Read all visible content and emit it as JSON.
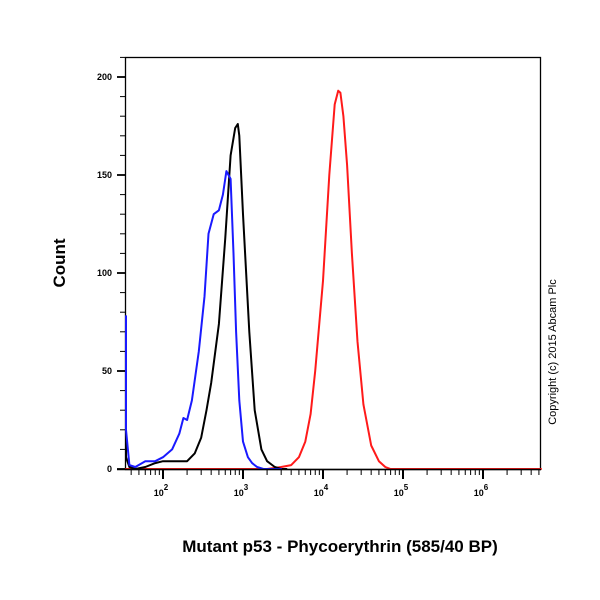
{
  "chart_data": {
    "type": "line",
    "title": "",
    "xlabel": "Mutant p53 - Phycoerythrin (585/40 BP)",
    "ylabel": "Count",
    "xscale": "log",
    "xlim": [
      30,
      6000000
    ],
    "ylim": [
      0,
      210
    ],
    "yticks": [
      0,
      50,
      100,
      150,
      200
    ],
    "xticks": [
      {
        "base": "10",
        "exp": "2",
        "value": 100
      },
      {
        "base": "10",
        "exp": "3",
        "value": 1000
      },
      {
        "base": "10",
        "exp": "4",
        "value": 10000
      },
      {
        "base": "10",
        "exp": "5",
        "value": 100000
      },
      {
        "base": "10",
        "exp": "6",
        "value": 1000000
      }
    ],
    "grid": false,
    "legend": null,
    "annotation": "Copyright (c) 2015 Abcam Plc",
    "series": [
      {
        "name": "Blue histogram",
        "color": "#1a1aff",
        "x": [
          30,
          33,
          38,
          45,
          60,
          80,
          100,
          130,
          160,
          180,
          200,
          230,
          280,
          330,
          370,
          430,
          500,
          560,
          620,
          700,
          760,
          820,
          900,
          1000,
          1150,
          1300,
          1500,
          1800,
          2200,
          3000
        ],
        "y": [
          78,
          20,
          2,
          1,
          4,
          4,
          6,
          10,
          18,
          26,
          25,
          35,
          60,
          88,
          120,
          130,
          132,
          140,
          152,
          148,
          110,
          70,
          35,
          14,
          6,
          3,
          1,
          0,
          0,
          0
        ]
      },
      {
        "name": "Black histogram",
        "color": "#000000",
        "x": [
          30,
          33,
          38,
          45,
          60,
          80,
          100,
          130,
          200,
          250,
          300,
          350,
          400,
          500,
          600,
          700,
          800,
          860,
          900,
          1000,
          1200,
          1400,
          1700,
          2000,
          2500,
          3000,
          3500
        ],
        "y": [
          15,
          6,
          1,
          0,
          1,
          3,
          4,
          4,
          4,
          8,
          16,
          30,
          44,
          74,
          118,
          160,
          174,
          176,
          170,
          130,
          70,
          30,
          10,
          4,
          1,
          0,
          0
        ]
      },
      {
        "name": "Red histogram",
        "color": "#ff1a1a",
        "x": [
          30,
          1000,
          2000,
          3000,
          4000,
          5000,
          6000,
          7000,
          8000,
          10000,
          12000,
          14000,
          15500,
          16500,
          18000,
          20000,
          23000,
          27000,
          32000,
          40000,
          50000,
          60000,
          70000,
          80000,
          100000,
          1000000,
          6000000
        ],
        "y": [
          0,
          0,
          0,
          1,
          2,
          6,
          14,
          28,
          50,
          96,
          150,
          186,
          193,
          192,
          180,
          155,
          110,
          65,
          33,
          12,
          4,
          1,
          0,
          0,
          0,
          0,
          0
        ]
      }
    ]
  }
}
